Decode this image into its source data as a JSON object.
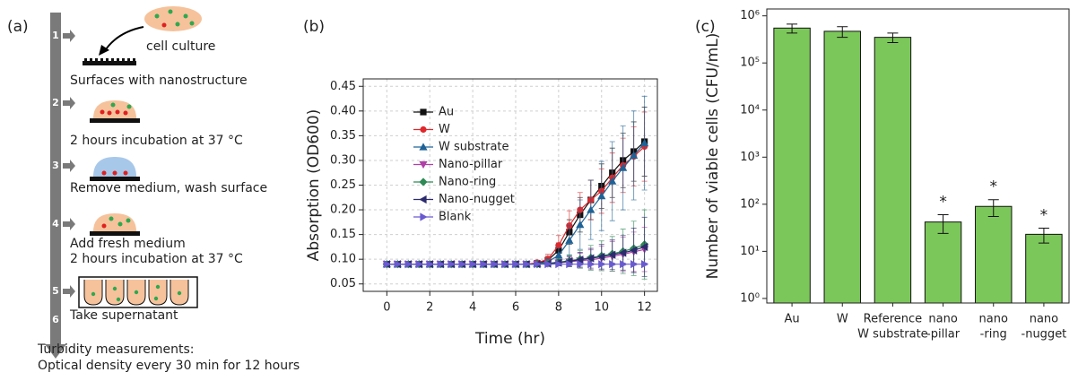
{
  "panel_labels": [
    "(a)",
    "(b)",
    "(c)"
  ],
  "diagram": {
    "step_numbers": [
      "1",
      "2",
      "3",
      "4",
      "5",
      "6"
    ],
    "texts": [
      "cell culture",
      "Surfaces with nanostructure",
      "2 hours incubation at 37 °C",
      "Remove medium, wash surface",
      "Add fresh medium",
      "2 hours incubation at 37 °C",
      "Take supernatant"
    ],
    "footer": [
      "Turbidity measurements:",
      "Optical density every 30 min for 12 hours"
    ]
  },
  "chart_data": [
    {
      "type": "line",
      "x_label": "Time (hr)",
      "y_label": "Absorption (OD600)",
      "x": [
        0,
        0.5,
        1,
        1.5,
        2,
        2.5,
        3,
        3.5,
        4,
        4.5,
        5,
        5.5,
        6,
        6.5,
        7,
        7.5,
        8,
        8.5,
        9,
        9.5,
        10,
        10.5,
        11,
        11.5,
        12
      ],
      "xlim": [
        -1.1,
        12.6
      ],
      "xticks": [
        0,
        2,
        4,
        6,
        8,
        10,
        12
      ],
      "ylim": [
        0.035,
        0.465
      ],
      "yticks": [
        0.05,
        {
          "value": 0.1,
          "label": "0.10"
        },
        0.15,
        {
          "value": 0.2,
          "label": "0.20"
        },
        0.25,
        {
          "value": 0.3,
          "label": "0.30"
        },
        0.35,
        {
          "value": 0.4,
          "label": "0.40"
        },
        0.45
      ],
      "grid": true,
      "legend": "upper left",
      "series": [
        {
          "name": "Au",
          "color": "#111111",
          "marker": "square",
          "values": [
            0.09,
            0.09,
            0.09,
            0.09,
            0.09,
            0.09,
            0.09,
            0.09,
            0.09,
            0.09,
            0.09,
            0.09,
            0.09,
            0.09,
            0.092,
            0.098,
            0.118,
            0.155,
            0.19,
            0.22,
            0.248,
            0.275,
            0.3,
            0.318,
            0.338
          ],
          "errors": [
            0.003,
            0.003,
            0.003,
            0.003,
            0.003,
            0.003,
            0.003,
            0.003,
            0.003,
            0.003,
            0.003,
            0.003,
            0.003,
            0.003,
            0.004,
            0.008,
            0.015,
            0.025,
            0.035,
            0.04,
            0.045,
            0.05,
            0.055,
            0.06,
            0.07
          ]
        },
        {
          "name": "W",
          "color": "#e0282c",
          "marker": "circle",
          "values": [
            0.09,
            0.09,
            0.09,
            0.09,
            0.09,
            0.09,
            0.09,
            0.09,
            0.09,
            0.09,
            0.09,
            0.09,
            0.09,
            0.09,
            0.093,
            0.1,
            0.128,
            0.168,
            0.2,
            0.22,
            0.238,
            0.265,
            0.29,
            0.308,
            0.328
          ],
          "errors": [
            0.003,
            0.003,
            0.003,
            0.003,
            0.003,
            0.003,
            0.003,
            0.003,
            0.003,
            0.003,
            0.003,
            0.003,
            0.003,
            0.003,
            0.005,
            0.01,
            0.02,
            0.03,
            0.035,
            0.04,
            0.045,
            0.05,
            0.055,
            0.06,
            0.07
          ]
        },
        {
          "name": "W substrate",
          "color": "#1f6396",
          "marker": "triangle-up",
          "values": [
            0.09,
            0.09,
            0.09,
            0.09,
            0.09,
            0.09,
            0.09,
            0.09,
            0.09,
            0.09,
            0.09,
            0.09,
            0.09,
            0.09,
            0.091,
            0.095,
            0.108,
            0.138,
            0.17,
            0.2,
            0.228,
            0.258,
            0.285,
            0.31,
            0.335
          ],
          "errors": [
            0.003,
            0.003,
            0.003,
            0.003,
            0.003,
            0.003,
            0.003,
            0.003,
            0.003,
            0.003,
            0.003,
            0.003,
            0.003,
            0.003,
            0.004,
            0.006,
            0.015,
            0.03,
            0.05,
            0.06,
            0.07,
            0.08,
            0.085,
            0.09,
            0.095
          ]
        },
        {
          "name": "Nano-pillar",
          "color": "#b03fa8",
          "marker": "triangle-down",
          "values": [
            0.09,
            0.09,
            0.09,
            0.09,
            0.09,
            0.09,
            0.09,
            0.09,
            0.09,
            0.09,
            0.09,
            0.09,
            0.09,
            0.09,
            0.09,
            0.091,
            0.093,
            0.095,
            0.097,
            0.099,
            0.102,
            0.106,
            0.11,
            0.115,
            0.12
          ],
          "errors": [
            0.003,
            0.003,
            0.003,
            0.003,
            0.003,
            0.003,
            0.003,
            0.003,
            0.003,
            0.003,
            0.003,
            0.003,
            0.003,
            0.003,
            0.003,
            0.004,
            0.006,
            0.01,
            0.015,
            0.02,
            0.025,
            0.03,
            0.035,
            0.04,
            0.045
          ]
        },
        {
          "name": "Nano-ring",
          "color": "#2e8a55",
          "marker": "diamond",
          "values": [
            0.09,
            0.09,
            0.09,
            0.09,
            0.09,
            0.09,
            0.09,
            0.09,
            0.09,
            0.09,
            0.09,
            0.09,
            0.09,
            0.09,
            0.09,
            0.092,
            0.094,
            0.097,
            0.1,
            0.103,
            0.107,
            0.111,
            0.116,
            0.122,
            0.13
          ],
          "errors": [
            0.003,
            0.003,
            0.003,
            0.003,
            0.003,
            0.003,
            0.003,
            0.003,
            0.003,
            0.003,
            0.003,
            0.003,
            0.003,
            0.003,
            0.003,
            0.004,
            0.007,
            0.012,
            0.018,
            0.025,
            0.03,
            0.035,
            0.045,
            0.055,
            0.07
          ]
        },
        {
          "name": "Nano-nugget",
          "color": "#2b2b6e",
          "marker": "triangle-left",
          "values": [
            0.09,
            0.09,
            0.09,
            0.09,
            0.09,
            0.09,
            0.09,
            0.09,
            0.09,
            0.09,
            0.09,
            0.09,
            0.09,
            0.09,
            0.09,
            0.091,
            0.093,
            0.096,
            0.099,
            0.102,
            0.105,
            0.109,
            0.113,
            0.118,
            0.125
          ],
          "errors": [
            0.003,
            0.003,
            0.003,
            0.003,
            0.003,
            0.003,
            0.003,
            0.003,
            0.003,
            0.003,
            0.003,
            0.003,
            0.003,
            0.003,
            0.003,
            0.004,
            0.006,
            0.01,
            0.015,
            0.02,
            0.025,
            0.03,
            0.035,
            0.045,
            0.06
          ]
        },
        {
          "name": "Blank",
          "color": "#6a5ad0",
          "marker": "triangle-right",
          "values": [
            0.09,
            0.09,
            0.09,
            0.09,
            0.09,
            0.09,
            0.09,
            0.09,
            0.09,
            0.09,
            0.09,
            0.09,
            0.09,
            0.09,
            0.09,
            0.09,
            0.09,
            0.09,
            0.09,
            0.09,
            0.09,
            0.09,
            0.09,
            0.09,
            0.09
          ],
          "errors": [
            0.002,
            0.002,
            0.002,
            0.002,
            0.002,
            0.002,
            0.002,
            0.002,
            0.002,
            0.002,
            0.002,
            0.002,
            0.002,
            0.002,
            0.002,
            0.002,
            0.002,
            0.002,
            0.002,
            0.002,
            0.002,
            0.002,
            0.002,
            0.002,
            0.002
          ]
        }
      ]
    },
    {
      "type": "bar",
      "y_label": "Number of viable cells (CFU/mL)",
      "log_scale": true,
      "color": "#7cc75a",
      "categories": [
        [
          "Au"
        ],
        [
          "W"
        ],
        [
          "Reference",
          "W substrate"
        ],
        [
          "nano",
          "-pillar"
        ],
        [
          "nano",
          "-ring"
        ],
        [
          "nano",
          "-nugget"
        ]
      ],
      "values": [
        550000,
        470000,
        350000,
        42,
        90,
        23
      ],
      "errors": [
        120000,
        120000,
        80000,
        18,
        35,
        8
      ],
      "annotations": [
        null,
        null,
        null,
        "*",
        "*",
        "*"
      ],
      "ylim": [
        0.8,
        1400000
      ],
      "yticks": [
        {
          "value": 1,
          "label": "10⁰"
        },
        {
          "value": 10,
          "label": "10¹"
        },
        {
          "value": 100,
          "label": "10²"
        },
        {
          "value": 1000,
          "label": "10³"
        },
        {
          "value": 10000,
          "label": "10⁴"
        },
        {
          "value": 100000,
          "label": "10⁵"
        },
        {
          "value": 1000000,
          "label": "10⁶"
        }
      ]
    }
  ]
}
